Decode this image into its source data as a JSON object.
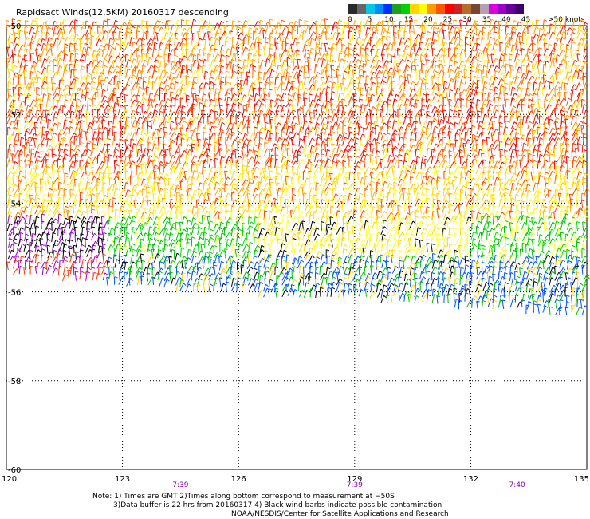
{
  "title": "Rapidsact Winds(12.5KM) 20160317 descending",
  "colorbar": {
    "labels": [
      "0",
      "5",
      "10",
      "15",
      "20",
      "25",
      "30",
      "35",
      "40",
      "45"
    ],
    "units": ">50 knots",
    "colors": [
      "#2a2a2a",
      "#666666",
      "#00c8e6",
      "#008cff",
      "#0032ff",
      "#1ea01e",
      "#00d200",
      "#ffd700",
      "#ffff00",
      "#ff9900",
      "#ff5500",
      "#ff0000",
      "#cc2222",
      "#b46e28",
      "#784632",
      "#b4a0b4",
      "#dd00dd",
      "#9900cc",
      "#660099",
      "#40006b"
    ]
  },
  "notes": {
    "line1": "Note: 1) Times are GMT 2)Times along bottom correspond to measurement at −50S",
    "line2": "3)Data buffer is 22 hrs from 20160317 4) Black wind barbs indicate possible contamination",
    "line3": "NOAA/NESDIS/Center for Satellite Applications and Research"
  },
  "chart_data": {
    "type": "wind_barb_map",
    "x_axis": {
      "ticks": [
        "120",
        "123",
        "126",
        "129",
        "132",
        "135"
      ],
      "range": [
        120,
        135
      ]
    },
    "y_axis": {
      "ticks": [
        "-50",
        "-52",
        "-54",
        "-56",
        "-58",
        "-60"
      ],
      "range": [
        -60,
        -50
      ]
    },
    "grid": true,
    "time_labels": [
      {
        "lon": 124.5,
        "label": "7:39"
      },
      {
        "lon": 129,
        "label": "7:39"
      },
      {
        "lon": 133.2,
        "label": "7:40"
      }
    ],
    "wind_bands": [
      {
        "lat_from": -50.0,
        "lat_to": -51.7,
        "speed_knots": 30,
        "color": "#ff9900"
      },
      {
        "lat_from": -51.7,
        "lat_to": -53.3,
        "speed_knots": 25,
        "color": "#ff4400"
      },
      {
        "lat_from": -53.3,
        "lat_to": -54.4,
        "speed_knots": 22,
        "color": "#ffd700"
      },
      {
        "lat_from": -54.4,
        "lat_to": -55.3,
        "speed_knots": 15,
        "color": "#00c000"
      },
      {
        "lat_from": -55.3,
        "lat_to": -56.2,
        "speed_knots": 10,
        "color": "#0050ff"
      }
    ],
    "swath_southern_edge": [
      [
        120,
        -55.6
      ],
      [
        123,
        -55.9
      ],
      [
        126,
        -56.1
      ],
      [
        129,
        -56.2
      ],
      [
        132,
        -56.4
      ],
      [
        135,
        -56.6
      ]
    ]
  }
}
